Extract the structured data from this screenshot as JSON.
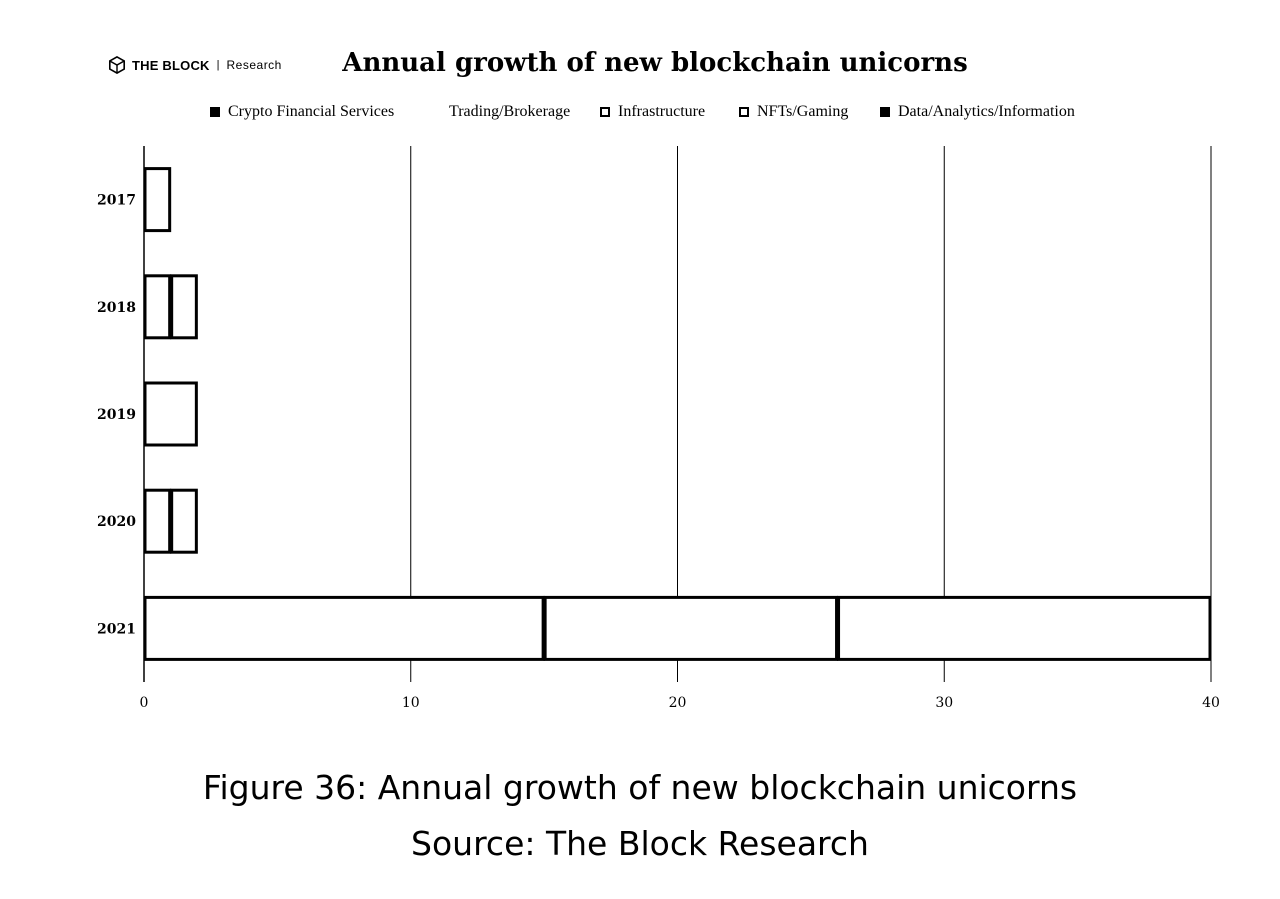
{
  "brand": {
    "name": "THE BLOCK",
    "separator": "|",
    "sub": "Research"
  },
  "colors": {
    "ink": "#000000",
    "background": "#ffffff"
  },
  "legend": [
    {
      "label": "Crypto Financial Services",
      "swatch": "filled"
    },
    {
      "label": "Trading/Brokerage",
      "swatch": "none"
    },
    {
      "label": "Infrastructure",
      "swatch": "outline"
    },
    {
      "label": "NFTs/Gaming",
      "swatch": "outline"
    },
    {
      "label": "Data/Analytics/Information",
      "swatch": "filled"
    }
  ],
  "chart_data": {
    "type": "bar",
    "orientation": "horizontal",
    "stacked": true,
    "title": "Annual growth of new blockchain unicorns",
    "categories": [
      "2017",
      "2018",
      "2019",
      "2020",
      "2021"
    ],
    "series": [
      {
        "name": "Crypto Financial Services",
        "values": [
          0,
          0,
          0,
          0,
          0
        ]
      },
      {
        "name": "Trading/Brokerage",
        "values": [
          1,
          1,
          2,
          0,
          15
        ]
      },
      {
        "name": "Infrastructure",
        "values": [
          0,
          1,
          0,
          1,
          11
        ]
      },
      {
        "name": "NFTs/Gaming",
        "values": [
          0,
          0,
          0,
          1,
          14
        ]
      },
      {
        "name": "Data/Analytics/Information",
        "values": [
          0,
          0,
          0,
          0,
          0
        ]
      }
    ],
    "xticks": [
      "0",
      "10",
      "20",
      "30",
      "40"
    ],
    "xlim": [
      0,
      40
    ],
    "xlabel": "",
    "ylabel": "",
    "grid": true,
    "legend_position": "top"
  },
  "caption": {
    "figure": "Figure 36: Annual growth of new blockchain unicorns",
    "source": "Source: The Block Research"
  }
}
